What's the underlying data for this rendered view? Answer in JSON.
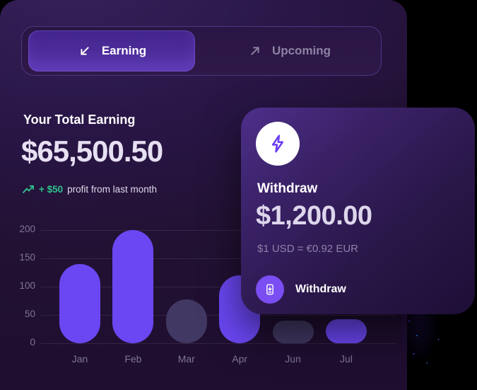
{
  "colors": {
    "canvas_bg": "#000000",
    "panel_bg": "#241338",
    "tabbar_border": "#7d5ac8",
    "active_tab_bg": "#4e2d9b",
    "bar_bright": "#6a47f3",
    "bar_muted": "#413863",
    "profit_green": "#2ec48c",
    "text_primary": "#ffffff",
    "text_amount": "#e6e0f2",
    "text_muted": "#8c83a3",
    "axis_text": "#7f7597",
    "button_purple": "#7a4ef2",
    "bolt_purple": "#6b3df0"
  },
  "tabs": [
    {
      "label": "Earning",
      "icon": "arrow-down-left",
      "active": true
    },
    {
      "label": "Upcoming",
      "icon": "arrow-up-right",
      "active": false
    }
  ],
  "earning": {
    "title": "Your Total Earning",
    "amount": "$65,500.50",
    "profit_prefix": "+ $50",
    "profit_suffix": "profit from last month"
  },
  "chart_data": {
    "type": "bar",
    "categories": [
      "Jan",
      "Feb",
      "Mar",
      "Apr",
      "Jun",
      "Jul"
    ],
    "values": [
      140,
      200,
      78,
      120,
      40,
      42
    ],
    "highlighted": [
      true,
      true,
      false,
      true,
      false,
      true
    ],
    "yticks": [
      0,
      50,
      100,
      150,
      200
    ],
    "ylim": [
      0,
      200
    ],
    "grid": true,
    "legend": "none",
    "title": ""
  },
  "withdraw_card": {
    "title": "Withdraw",
    "amount": "$1,200.00",
    "exchange_rate": "$1 USD = €0.92 EUR",
    "button_label": "Withdraw"
  }
}
